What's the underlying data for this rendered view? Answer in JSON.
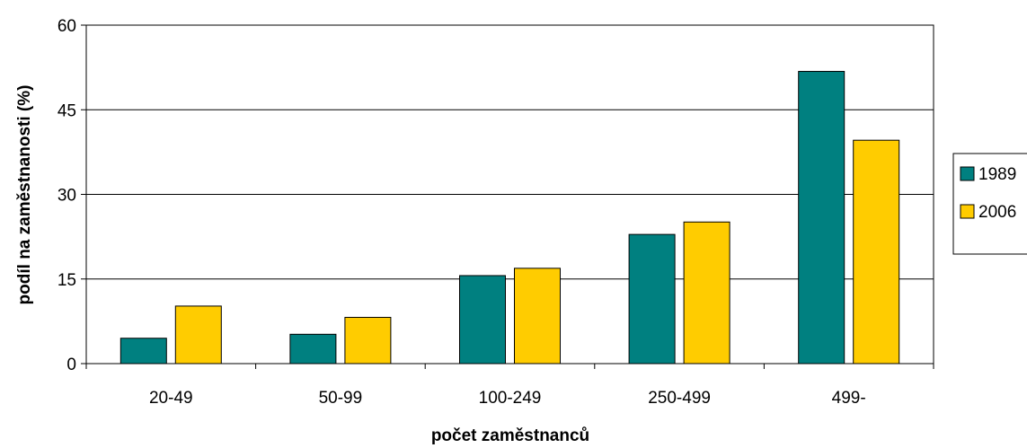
{
  "chart_data": {
    "type": "bar",
    "title": "",
    "xlabel": "počet zaměstnanců",
    "ylabel": "podíl na zaměstnanosti (%)",
    "categories": [
      "20-49",
      "50-99",
      "100-249",
      "250-499",
      "499-"
    ],
    "ylim": [
      0,
      60
    ],
    "yticks": [
      0,
      15,
      30,
      45,
      60
    ],
    "grid": true,
    "legend_position": "right",
    "series": [
      {
        "name": "1989",
        "color": "#008080",
        "values": [
          4.5,
          5.2,
          15.6,
          22.9,
          51.8
        ]
      },
      {
        "name": "2006",
        "color": "#FFCC00",
        "values": [
          10.2,
          8.2,
          16.9,
          25.1,
          39.6
        ]
      }
    ]
  }
}
